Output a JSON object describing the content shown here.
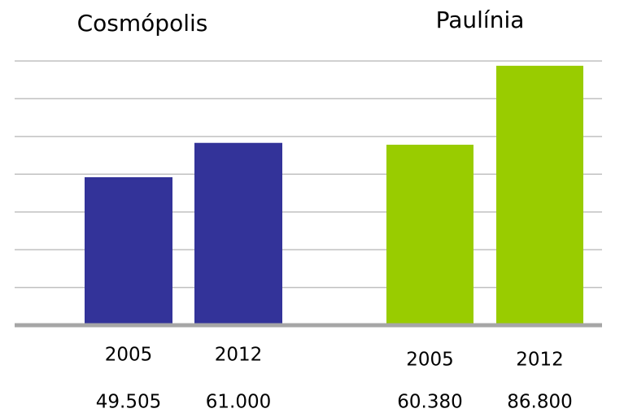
{
  "chart_data": {
    "type": "bar",
    "categories": [
      "2005",
      "2012"
    ],
    "series": [
      {
        "name": "Cosmópolis",
        "color": "#333399",
        "values": [
          49505,
          61000
        ],
        "value_labels": [
          "49.505",
          "61.000"
        ]
      },
      {
        "name": "Paulínia",
        "color": "#99cc00",
        "values": [
          60380,
          86800
        ],
        "value_labels": [
          "60.380",
          "86.800"
        ]
      }
    ],
    "ylim": [
      0,
      88400
    ],
    "grid": true
  }
}
